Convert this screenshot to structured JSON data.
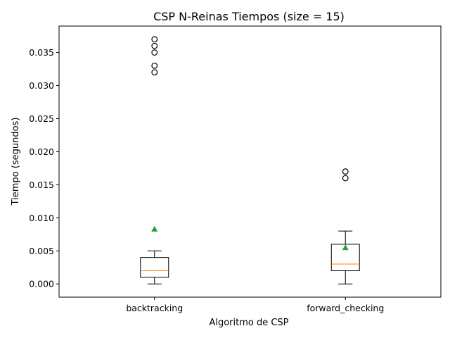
{
  "chart_data": {
    "type": "box",
    "title": "CSP N-Reinas Tiempos (size = 15)",
    "xlabel": "Algoritmo de CSP",
    "ylabel": "Tiempo (segundos)",
    "ylim": [
      -0.002,
      0.039
    ],
    "yticks": [
      "0.000",
      "0.005",
      "0.010",
      "0.015",
      "0.020",
      "0.025",
      "0.030",
      "0.035"
    ],
    "grid": false,
    "categories": [
      "backtracking",
      "forward_checking"
    ],
    "boxes": [
      {
        "name": "backtracking",
        "whisker_low": 0.0,
        "q1": 0.001,
        "median": 0.002,
        "q3": 0.004,
        "whisker_high": 0.005,
        "mean": 0.0083,
        "outliers": [
          0.032,
          0.033,
          0.035,
          0.036,
          0.037
        ]
      },
      {
        "name": "forward_checking",
        "whisker_low": 0.0,
        "q1": 0.002,
        "median": 0.003,
        "q3": 0.006,
        "whisker_high": 0.008,
        "mean": 0.0055,
        "outliers": [
          0.016,
          0.017
        ]
      }
    ],
    "colors": {
      "box": "#000000",
      "median": "#ff7f0e",
      "mean": "#2ca02c",
      "outlier": "#000000"
    }
  }
}
